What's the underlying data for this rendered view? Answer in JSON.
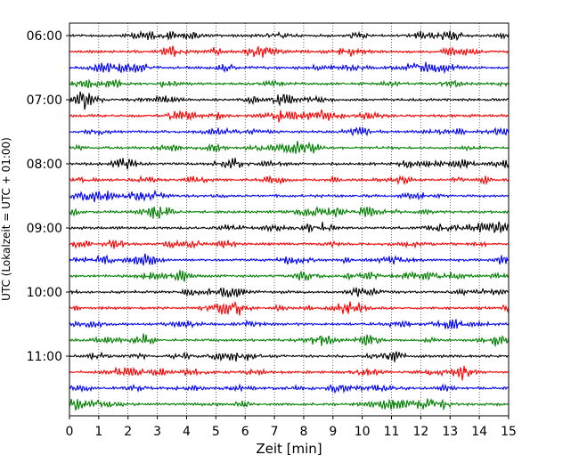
{
  "chart_data": {
    "type": "line",
    "title": "",
    "xlabel": "Zeit  [min]",
    "ylabel": "UTC (Lokalzeit = UTC + 01:00)",
    "xlim": [
      0,
      15
    ],
    "x_ticks": [
      0,
      1,
      2,
      3,
      4,
      5,
      6,
      7,
      8,
      9,
      10,
      11,
      12,
      13,
      14,
      15
    ],
    "x_tick_labels": [
      "0",
      "1",
      "2",
      "3",
      "4",
      "5",
      "6",
      "7",
      "8",
      "9",
      "10",
      "11",
      "12",
      "13",
      "14",
      "15"
    ],
    "y_ticks": [
      "06:00",
      "07:00",
      "08:00",
      "09:00",
      "10:00",
      "11:00"
    ],
    "grid": "vertical dotted at each minute",
    "trace_colors": [
      "#000000",
      "#ff0000",
      "#0000ff",
      "#008000"
    ],
    "series": [
      {
        "start": "06:00"
      },
      {
        "start": "06:15"
      },
      {
        "start": "06:30"
      },
      {
        "start": "06:45"
      },
      {
        "start": "07:00"
      },
      {
        "start": "07:15"
      },
      {
        "start": "07:30"
      },
      {
        "start": "07:45"
      },
      {
        "start": "08:00"
      },
      {
        "start": "08:15"
      },
      {
        "start": "08:30"
      },
      {
        "start": "08:45"
      },
      {
        "start": "09:00"
      },
      {
        "start": "09:15"
      },
      {
        "start": "09:30"
      },
      {
        "start": "09:45"
      },
      {
        "start": "10:00"
      },
      {
        "start": "10:15"
      },
      {
        "start": "10:30"
      },
      {
        "start": "10:45"
      },
      {
        "start": "11:00"
      },
      {
        "start": "11:15"
      },
      {
        "start": "11:30"
      },
      {
        "start": "11:45"
      }
    ]
  }
}
